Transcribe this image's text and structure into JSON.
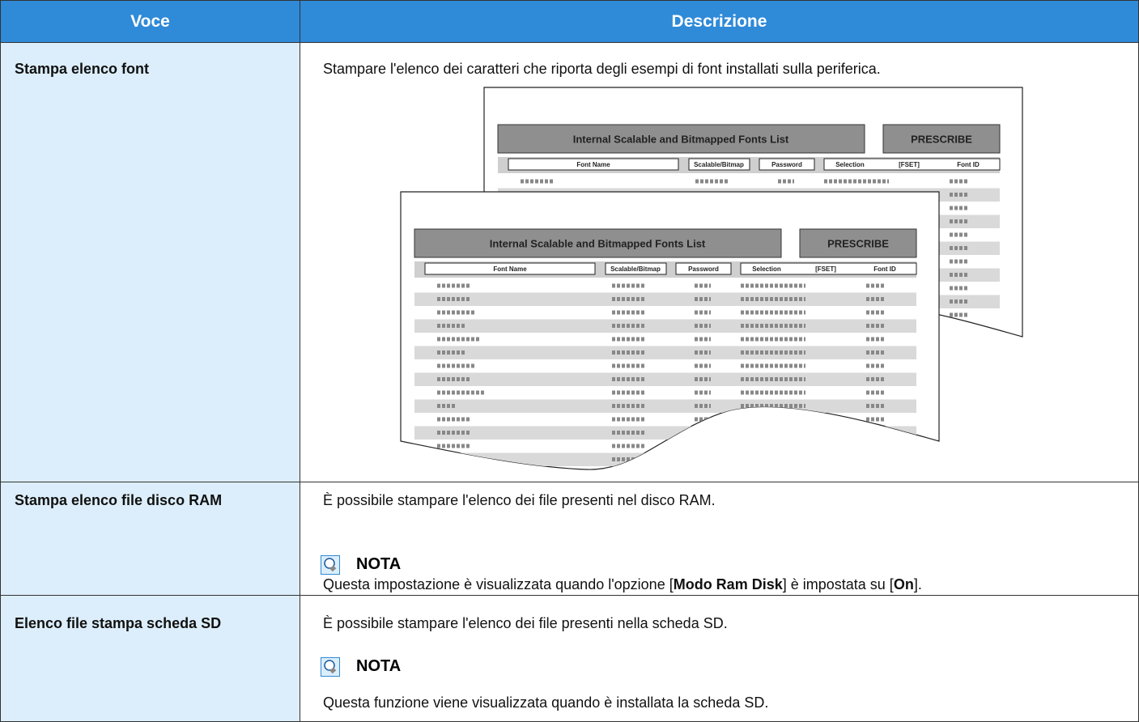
{
  "table": {
    "header": [
      "Voce",
      "Descrizione"
    ],
    "rows": [
      {
        "item": "Stampa elenco font",
        "description": "Stampare l'elenco dei caratteri che riporta degli esempi di font installati sulla periferica.",
        "figure": {
          "title": "Internal Scalable and Bitmapped Fonts List",
          "badge": "PRESCRIBE",
          "columns": [
            "Font Name",
            "Scalable/Bitmap",
            "Password",
            "Selection",
            "[FSET]",
            "Font ID"
          ]
        }
      },
      {
        "item": "Stampa elenco file disco RAM",
        "description": "È possibile stampare l'elenco dei file presenti nel disco RAM.",
        "note": {
          "label": "NOTA",
          "text": [
            "Questa impostazione è visualizzata quando l'opzione [",
            "Modo Ram Disk",
            "] è impostata su [",
            "On",
            "]."
          ]
        }
      },
      {
        "item": "Elenco file stampa scheda SD",
        "description": "È possibile stampare l'elenco dei file presenti nella scheda SD.",
        "note": {
          "label": "NOTA",
          "text": [
            "Questa funzione viene visualizzata quando è installata la scheda SD."
          ]
        }
      }
    ]
  }
}
